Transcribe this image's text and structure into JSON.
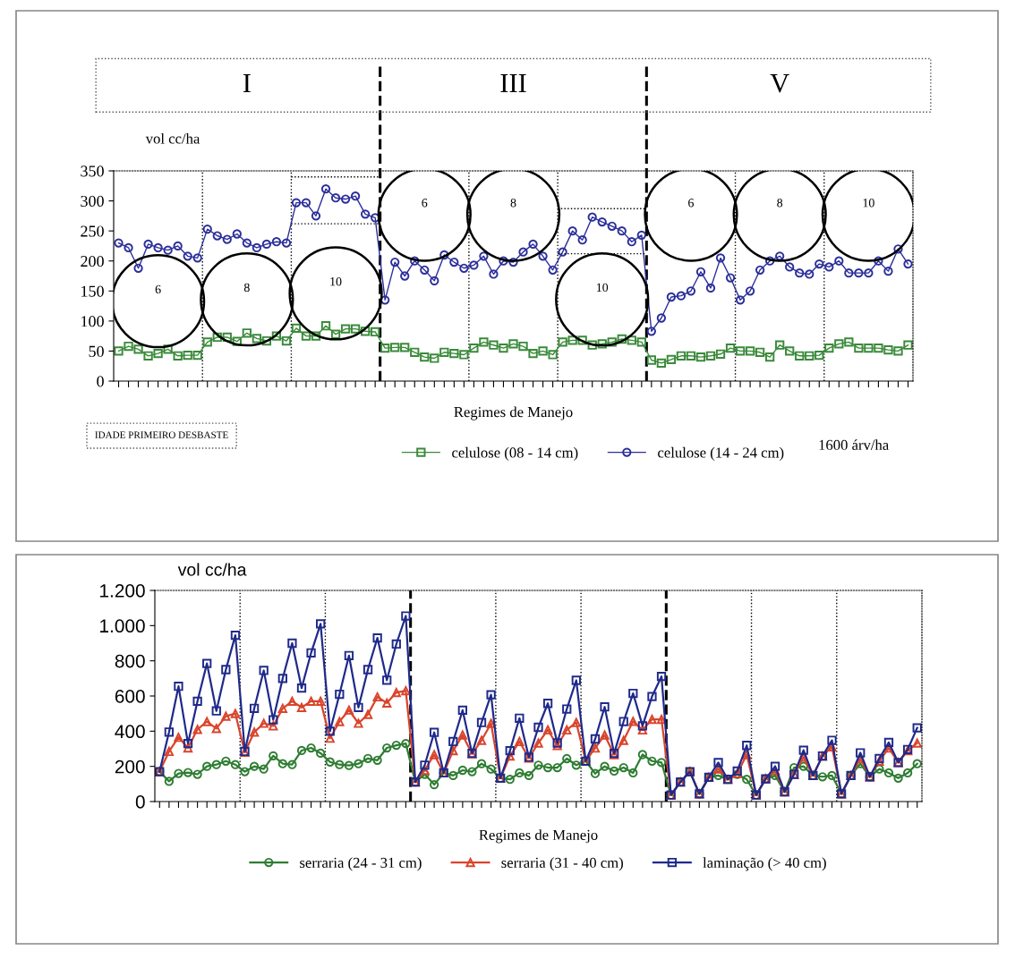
{
  "chart_data": [
    {
      "type": "line",
      "ylabel": "vol cc/ha",
      "xlabel": "Regimes de Manejo",
      "categories": [
        null,
        null,
        null,
        null,
        null,
        null,
        null,
        null,
        null,
        null,
        null,
        null,
        null,
        null,
        null,
        null,
        null,
        null,
        null,
        null,
        null,
        null,
        null,
        null,
        null,
        null,
        null,
        null,
        null,
        null,
        null,
        null,
        null,
        null,
        null,
        null,
        null,
        null,
        null,
        null,
        null,
        null,
        null,
        null,
        null,
        null,
        null,
        null,
        null,
        null,
        null,
        null,
        null,
        null,
        null,
        null,
        null,
        null,
        null,
        null,
        null,
        null,
        null,
        null,
        null,
        null,
        null,
        null,
        null,
        null,
        null,
        null,
        null,
        null,
        null,
        null,
        null,
        null,
        null,
        null,
        null
      ],
      "series": [
        {
          "name": "celulose (08 - 14 cm)",
          "color": "#3a8a3a",
          "marker": "square",
          "values": [
            50,
            58,
            53,
            42,
            46,
            53,
            42,
            43,
            43,
            65,
            73,
            73,
            66,
            80,
            71,
            67,
            75,
            67,
            88,
            75,
            75,
            92,
            78,
            87,
            87,
            83,
            82,
            55,
            56,
            56,
            48,
            40,
            38,
            48,
            46,
            44,
            55,
            65,
            60,
            55,
            62,
            58,
            46,
            50,
            44,
            65,
            68,
            68,
            60,
            62,
            65,
            70,
            68,
            65,
            35,
            30,
            36,
            42,
            42,
            40,
            42,
            45,
            55,
            50,
            50,
            48,
            40,
            60,
            50,
            42,
            42,
            43,
            55,
            62,
            65,
            55,
            55,
            55,
            52,
            50,
            60
          ]
        },
        {
          "name": "celulose (14 - 24 cm)",
          "color": "#2b2f9a",
          "marker": "circle",
          "values": [
            230,
            222,
            188,
            228,
            222,
            218,
            225,
            208,
            205,
            253,
            242,
            236,
            245,
            230,
            222,
            228,
            232,
            230,
            297,
            297,
            275,
            320,
            305,
            303,
            308,
            278,
            272,
            135,
            198,
            175,
            200,
            185,
            167,
            210,
            198,
            188,
            193,
            208,
            178,
            200,
            198,
            215,
            228,
            208,
            185,
            215,
            250,
            235,
            273,
            265,
            258,
            250,
            232,
            243,
            83,
            105,
            140,
            142,
            150,
            182,
            155,
            205,
            172,
            135,
            150,
            185,
            200,
            208,
            190,
            180,
            178,
            195,
            190,
            200,
            180,
            180,
            180,
            200,
            183,
            220,
            195
          ]
        }
      ],
      "ylim": [
        0,
        350
      ],
      "yticks": [
        0,
        50,
        100,
        150,
        200,
        250,
        300,
        350
      ],
      "grid": false,
      "legend": "bottom",
      "line_style": "solid",
      "annotations": [
        "I",
        "III",
        "V",
        "6",
        "8",
        "10",
        "6",
        "8",
        "10",
        "6",
        "8",
        "10",
        "IDADE PRIMEIRO DESBASTE",
        "1600 árv/ha"
      ]
    },
    {
      "type": "line",
      "ylabel": "vol cc/ha",
      "xlabel": "Regimes de Manejo",
      "categories": [
        null,
        null,
        null,
        null,
        null,
        null,
        null,
        null,
        null,
        null,
        null,
        null,
        null,
        null,
        null,
        null,
        null,
        null,
        null,
        null,
        null,
        null,
        null,
        null,
        null,
        null,
        null,
        null,
        null,
        null,
        null,
        null,
        null,
        null,
        null,
        null,
        null,
        null,
        null,
        null,
        null,
        null,
        null,
        null,
        null,
        null,
        null,
        null,
        null,
        null,
        null,
        null,
        null,
        null,
        null,
        null,
        null,
        null,
        null,
        null,
        null,
        null,
        null,
        null,
        null,
        null,
        null,
        null,
        null,
        null,
        null,
        null,
        null,
        null,
        null,
        null,
        null,
        null,
        null,
        null,
        null
      ],
      "series": [
        {
          "name": "serraria (24 - 31 cm)",
          "color": "#2e7d32",
          "marker": "circle",
          "values": [
            170,
            115,
            160,
            165,
            155,
            200,
            210,
            230,
            210,
            170,
            200,
            185,
            260,
            215,
            210,
            290,
            305,
            275,
            225,
            210,
            205,
            215,
            245,
            235,
            305,
            320,
            330,
            111,
            155,
            96,
            163,
            148,
            178,
            170,
            215,
            185,
            133,
            126,
            163,
            148,
            207,
            193,
            193,
            244,
            207,
            230,
            159,
            200,
            173,
            193,
            163,
            267,
            230,
            222,
            37,
            111,
            170,
            44,
            138,
            148,
            126,
            155,
            126,
            37,
            129,
            148,
            55,
            193,
            200,
            148,
            141,
            148,
            44,
            148,
            215,
            141,
            185,
            163,
            133,
            163,
            215
          ]
        },
        {
          "name": "serraria (31 - 40 cm)",
          "color": "#d9442b",
          "marker": "triangle",
          "values": [
            170,
            285,
            365,
            305,
            410,
            455,
            415,
            485,
            500,
            280,
            395,
            445,
            430,
            530,
            570,
            535,
            570,
            570,
            360,
            455,
            520,
            445,
            495,
            595,
            560,
            620,
            630,
            111,
            178,
            267,
            163,
            289,
            378,
            271,
            348,
            444,
            133,
            259,
            341,
            247,
            333,
            407,
            319,
            407,
            449,
            230,
            304,
            378,
            267,
            348,
            456,
            407,
            467,
            467,
            37,
            111,
            170,
            44,
            138,
            185,
            126,
            159,
            267,
            37,
            129,
            178,
            55,
            155,
            252,
            148,
            259,
            311,
            44,
            148,
            244,
            141,
            230,
            304,
            222,
            289,
            333
          ]
        },
        {
          "name": "laminação (> 40 cm)",
          "color": "#1f2a8a",
          "marker": "square",
          "values": [
            170,
            395,
            655,
            330,
            570,
            785,
            515,
            750,
            945,
            285,
            530,
            745,
            465,
            700,
            900,
            645,
            845,
            1010,
            400,
            610,
            830,
            535,
            750,
            930,
            690,
            895,
            1055,
            111,
            207,
            393,
            163,
            341,
            519,
            274,
            449,
            607,
            133,
            289,
            474,
            252,
            422,
            558,
            333,
            526,
            689,
            230,
            356,
            538,
            274,
            455,
            615,
            430,
            597,
            711,
            37,
            111,
            170,
            44,
            138,
            222,
            126,
            173,
            319,
            37,
            129,
            200,
            55,
            155,
            292,
            148,
            259,
            348,
            44,
            148,
            277,
            141,
            244,
            336,
            222,
            296,
            419
          ]
        }
      ],
      "ylim": [
        0,
        1200
      ],
      "yticks": [
        0,
        200,
        400,
        600,
        800,
        {
          "value": 1000,
          "label": "1.000"
        },
        {
          "value": 1200,
          "label": "1.200"
        }
      ],
      "grid": false,
      "legend": "bottom",
      "line_style": "solid"
    }
  ]
}
